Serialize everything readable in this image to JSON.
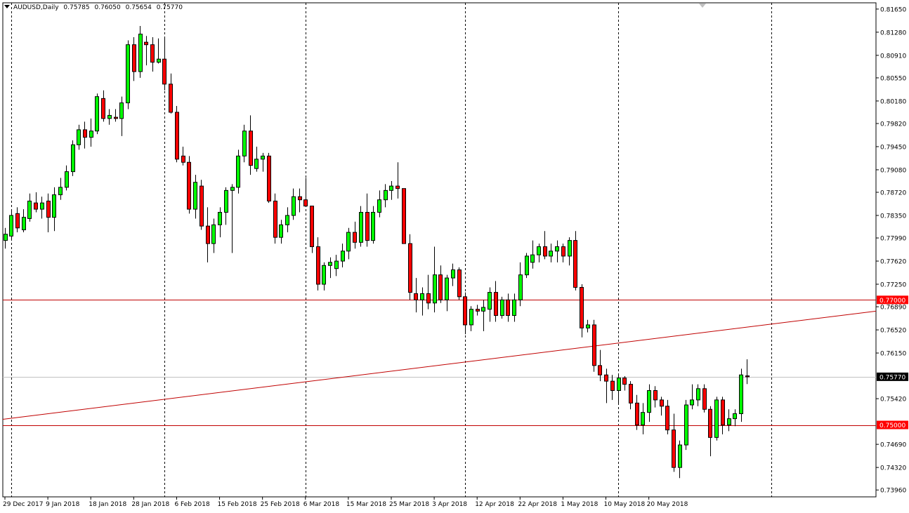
{
  "header": {
    "symbol": "AUDUSD,Daily",
    "open": "0.75785",
    "high": "0.76050",
    "low": "0.75654",
    "close": "0.75770"
  },
  "colors": {
    "background": "#ffffff",
    "bull": "#00ff00",
    "bear": "#ff0000",
    "wick": "#000000",
    "grid": "#000000",
    "level_line": "#c00000",
    "trend_line": "#c00000",
    "price_line": "#c0c0c0",
    "label_red_bg": "#ff0000",
    "label_price_bg": "#000000"
  },
  "chart_data": {
    "type": "candlestick",
    "symbol": "AUDUSD",
    "timeframe": "Daily",
    "ylim": [
      0.7385,
      0.8175
    ],
    "y_ticks": [
      "0.81650",
      "0.81280",
      "0.80910",
      "0.80550",
      "0.80180",
      "0.79820",
      "0.79450",
      "0.79080",
      "0.78720",
      "0.78350",
      "0.77990",
      "0.77620",
      "0.77250",
      "0.76890",
      "0.76520",
      "0.76150",
      "0.75420",
      "0.74690",
      "0.74320",
      "0.73960"
    ],
    "x_ticks": [
      {
        "label": "29 Dec 2017",
        "index": 0
      },
      {
        "label": "9 Jan 2018",
        "index": 7
      },
      {
        "label": "18 Jan 2018",
        "index": 14
      },
      {
        "label": "28 Jan 2018",
        "index": 21
      },
      {
        "label": "6 Feb 2018",
        "index": 28
      },
      {
        "label": "15 Feb 2018",
        "index": 35
      },
      {
        "label": "25 Feb 2018",
        "index": 42
      },
      {
        "label": "6 Mar 2018",
        "index": 49
      },
      {
        "label": "15 Mar 2018",
        "index": 56
      },
      {
        "label": "25 Mar 2018",
        "index": 63
      },
      {
        "label": "3 Apr 2018",
        "index": 70
      },
      {
        "label": "12 Apr 2018",
        "index": 77
      },
      {
        "label": "22 Apr 2018",
        "index": 84
      },
      {
        "label": "1 May 2018",
        "index": 91
      },
      {
        "label": "10 May 2018",
        "index": 98
      },
      {
        "label": "20 May 2018",
        "index": 105
      }
    ],
    "period_separators": [
      1,
      26,
      49,
      75,
      100,
      125
    ],
    "horizontal_levels": [
      {
        "value": 0.77,
        "label": "0.77000"
      },
      {
        "value": 0.75,
        "label": "0.75000"
      }
    ],
    "current_price": {
      "value": 0.7577,
      "label": "0.75770"
    },
    "trend_line": {
      "from": {
        "index": 0,
        "price": 0.7509
      },
      "to": {
        "index": 149,
        "price": 0.7682
      }
    },
    "candles": [
      {
        "o": 0.7795,
        "h": 0.7815,
        "l": 0.7782,
        "c": 0.7805
      },
      {
        "o": 0.7802,
        "h": 0.7845,
        "l": 0.7797,
        "c": 0.7835
      },
      {
        "o": 0.7838,
        "h": 0.7848,
        "l": 0.7808,
        "c": 0.7815
      },
      {
        "o": 0.7812,
        "h": 0.7845,
        "l": 0.7808,
        "c": 0.7832
      },
      {
        "o": 0.783,
        "h": 0.787,
        "l": 0.7825,
        "c": 0.7858
      },
      {
        "o": 0.7855,
        "h": 0.7872,
        "l": 0.784,
        "c": 0.7845
      },
      {
        "o": 0.7845,
        "h": 0.7865,
        "l": 0.783,
        "c": 0.7855
      },
      {
        "o": 0.7858,
        "h": 0.787,
        "l": 0.7808,
        "c": 0.7832
      },
      {
        "o": 0.7832,
        "h": 0.788,
        "l": 0.781,
        "c": 0.7868
      },
      {
        "o": 0.7868,
        "h": 0.7895,
        "l": 0.786,
        "c": 0.788
      },
      {
        "o": 0.788,
        "h": 0.7915,
        "l": 0.7875,
        "c": 0.7905
      },
      {
        "o": 0.7905,
        "h": 0.7955,
        "l": 0.7898,
        "c": 0.7948
      },
      {
        "o": 0.7948,
        "h": 0.798,
        "l": 0.794,
        "c": 0.7972
      },
      {
        "o": 0.7972,
        "h": 0.7985,
        "l": 0.7942,
        "c": 0.796
      },
      {
        "o": 0.796,
        "h": 0.799,
        "l": 0.7945,
        "c": 0.797
      },
      {
        "o": 0.797,
        "h": 0.803,
        "l": 0.7965,
        "c": 0.8025
      },
      {
        "o": 0.8022,
        "h": 0.8035,
        "l": 0.7985,
        "c": 0.799
      },
      {
        "o": 0.799,
        "h": 0.8005,
        "l": 0.798,
        "c": 0.7995
      },
      {
        "o": 0.7992,
        "h": 0.8005,
        "l": 0.7985,
        "c": 0.799
      },
      {
        "o": 0.799,
        "h": 0.8025,
        "l": 0.7962,
        "c": 0.8015
      },
      {
        "o": 0.8015,
        "h": 0.8115,
        "l": 0.8005,
        "c": 0.8108
      },
      {
        "o": 0.8108,
        "h": 0.812,
        "l": 0.805,
        "c": 0.8065
      },
      {
        "o": 0.8065,
        "h": 0.8138,
        "l": 0.8055,
        "c": 0.8125
      },
      {
        "o": 0.8112,
        "h": 0.8122,
        "l": 0.8075,
        "c": 0.8108
      },
      {
        "o": 0.8108,
        "h": 0.812,
        "l": 0.8065,
        "c": 0.808
      },
      {
        "o": 0.808,
        "h": 0.8118,
        "l": 0.8078,
        "c": 0.8085
      },
      {
        "o": 0.8085,
        "h": 0.8118,
        "l": 0.8035,
        "c": 0.8045
      },
      {
        "o": 0.8045,
        "h": 0.8062,
        "l": 0.7998,
        "c": 0.8
      },
      {
        "o": 0.8,
        "h": 0.801,
        "l": 0.792,
        "c": 0.7925
      },
      {
        "o": 0.793,
        "h": 0.7945,
        "l": 0.7915,
        "c": 0.792
      },
      {
        "o": 0.792,
        "h": 0.793,
        "l": 0.7838,
        "c": 0.7845
      },
      {
        "o": 0.7845,
        "h": 0.79,
        "l": 0.783,
        "c": 0.7888
      },
      {
        "o": 0.7882,
        "h": 0.7892,
        "l": 0.7812,
        "c": 0.7818
      },
      {
        "o": 0.7818,
        "h": 0.7848,
        "l": 0.776,
        "c": 0.779
      },
      {
        "o": 0.779,
        "h": 0.783,
        "l": 0.7775,
        "c": 0.782
      },
      {
        "o": 0.782,
        "h": 0.7848,
        "l": 0.78,
        "c": 0.784
      },
      {
        "o": 0.784,
        "h": 0.788,
        "l": 0.782,
        "c": 0.7875
      },
      {
        "o": 0.7875,
        "h": 0.7885,
        "l": 0.7775,
        "c": 0.788
      },
      {
        "o": 0.788,
        "h": 0.794,
        "l": 0.787,
        "c": 0.793
      },
      {
        "o": 0.793,
        "h": 0.798,
        "l": 0.792,
        "c": 0.797
      },
      {
        "o": 0.797,
        "h": 0.7995,
        "l": 0.79,
        "c": 0.7915
      },
      {
        "o": 0.791,
        "h": 0.7945,
        "l": 0.7905,
        "c": 0.7925
      },
      {
        "o": 0.7925,
        "h": 0.7935,
        "l": 0.7905,
        "c": 0.793
      },
      {
        "o": 0.793,
        "h": 0.7935,
        "l": 0.7855,
        "c": 0.7858
      },
      {
        "o": 0.7858,
        "h": 0.787,
        "l": 0.779,
        "c": 0.78
      },
      {
        "o": 0.78,
        "h": 0.7828,
        "l": 0.779,
        "c": 0.782
      },
      {
        "o": 0.782,
        "h": 0.7848,
        "l": 0.7808,
        "c": 0.7835
      },
      {
        "o": 0.7835,
        "h": 0.7878,
        "l": 0.7828,
        "c": 0.7865
      },
      {
        "o": 0.7865,
        "h": 0.7878,
        "l": 0.784,
        "c": 0.786
      },
      {
        "o": 0.786,
        "h": 0.7895,
        "l": 0.785,
        "c": 0.785
      },
      {
        "o": 0.785,
        "h": 0.785,
        "l": 0.7775,
        "c": 0.7785
      },
      {
        "o": 0.7785,
        "h": 0.78,
        "l": 0.7715,
        "c": 0.7725
      },
      {
        "o": 0.7725,
        "h": 0.776,
        "l": 0.7715,
        "c": 0.7755
      },
      {
        "o": 0.7755,
        "h": 0.7768,
        "l": 0.7735,
        "c": 0.776
      },
      {
        "o": 0.775,
        "h": 0.7772,
        "l": 0.7738,
        "c": 0.7762
      },
      {
        "o": 0.7762,
        "h": 0.779,
        "l": 0.7752,
        "c": 0.7778
      },
      {
        "o": 0.7778,
        "h": 0.7815,
        "l": 0.7765,
        "c": 0.7808
      },
      {
        "o": 0.7808,
        "h": 0.7825,
        "l": 0.7782,
        "c": 0.7792
      },
      {
        "o": 0.7792,
        "h": 0.785,
        "l": 0.7785,
        "c": 0.784
      },
      {
        "o": 0.784,
        "h": 0.787,
        "l": 0.7785,
        "c": 0.7795
      },
      {
        "o": 0.7795,
        "h": 0.785,
        "l": 0.779,
        "c": 0.784
      },
      {
        "o": 0.784,
        "h": 0.7875,
        "l": 0.7832,
        "c": 0.786
      },
      {
        "o": 0.786,
        "h": 0.7885,
        "l": 0.7848,
        "c": 0.7875
      },
      {
        "o": 0.7875,
        "h": 0.789,
        "l": 0.786,
        "c": 0.7882
      },
      {
        "o": 0.7882,
        "h": 0.792,
        "l": 0.7862,
        "c": 0.7878
      },
      {
        "o": 0.7878,
        "h": 0.7878,
        "l": 0.779,
        "c": 0.779
      },
      {
        "o": 0.779,
        "h": 0.7805,
        "l": 0.77,
        "c": 0.7712
      },
      {
        "o": 0.771,
        "h": 0.7735,
        "l": 0.768,
        "c": 0.77
      },
      {
        "o": 0.77,
        "h": 0.772,
        "l": 0.7675,
        "c": 0.771
      },
      {
        "o": 0.771,
        "h": 0.774,
        "l": 0.7685,
        "c": 0.7695
      },
      {
        "o": 0.7695,
        "h": 0.7785,
        "l": 0.768,
        "c": 0.774
      },
      {
        "o": 0.774,
        "h": 0.7755,
        "l": 0.7695,
        "c": 0.77
      },
      {
        "o": 0.77,
        "h": 0.774,
        "l": 0.7682,
        "c": 0.7735
      },
      {
        "o": 0.7735,
        "h": 0.7758,
        "l": 0.7722,
        "c": 0.7748
      },
      {
        "o": 0.7748,
        "h": 0.7752,
        "l": 0.77,
        "c": 0.7705
      },
      {
        "o": 0.7705,
        "h": 0.7712,
        "l": 0.7645,
        "c": 0.766
      },
      {
        "o": 0.766,
        "h": 0.769,
        "l": 0.765,
        "c": 0.7685
      },
      {
        "o": 0.7685,
        "h": 0.7692,
        "l": 0.7675,
        "c": 0.7682
      },
      {
        "o": 0.7682,
        "h": 0.77,
        "l": 0.765,
        "c": 0.7688
      },
      {
        "o": 0.7685,
        "h": 0.772,
        "l": 0.7665,
        "c": 0.7712
      },
      {
        "o": 0.7712,
        "h": 0.773,
        "l": 0.7665,
        "c": 0.7675
      },
      {
        "o": 0.7675,
        "h": 0.7705,
        "l": 0.767,
        "c": 0.77
      },
      {
        "o": 0.77,
        "h": 0.771,
        "l": 0.7665,
        "c": 0.7675
      },
      {
        "o": 0.7675,
        "h": 0.771,
        "l": 0.7665,
        "c": 0.77
      },
      {
        "o": 0.77,
        "h": 0.776,
        "l": 0.769,
        "c": 0.774
      },
      {
        "o": 0.774,
        "h": 0.7775,
        "l": 0.7735,
        "c": 0.777
      },
      {
        "o": 0.776,
        "h": 0.7795,
        "l": 0.775,
        "c": 0.7772
      },
      {
        "o": 0.7772,
        "h": 0.779,
        "l": 0.776,
        "c": 0.7785
      },
      {
        "o": 0.7785,
        "h": 0.781,
        "l": 0.7765,
        "c": 0.777
      },
      {
        "o": 0.777,
        "h": 0.779,
        "l": 0.776,
        "c": 0.7778
      },
      {
        "o": 0.7778,
        "h": 0.7795,
        "l": 0.776,
        "c": 0.7785
      },
      {
        "o": 0.7785,
        "h": 0.779,
        "l": 0.776,
        "c": 0.777
      },
      {
        "o": 0.777,
        "h": 0.78,
        "l": 0.7755,
        "c": 0.7795
      },
      {
        "o": 0.7795,
        "h": 0.781,
        "l": 0.7715,
        "c": 0.772
      },
      {
        "o": 0.772,
        "h": 0.7725,
        "l": 0.764,
        "c": 0.7655
      },
      {
        "o": 0.7655,
        "h": 0.7668,
        "l": 0.7648,
        "c": 0.766
      },
      {
        "o": 0.766,
        "h": 0.7668,
        "l": 0.7585,
        "c": 0.7595
      },
      {
        "o": 0.7595,
        "h": 0.762,
        "l": 0.757,
        "c": 0.758
      },
      {
        "o": 0.758,
        "h": 0.759,
        "l": 0.7535,
        "c": 0.757
      },
      {
        "o": 0.757,
        "h": 0.758,
        "l": 0.754,
        "c": 0.7555
      },
      {
        "o": 0.7555,
        "h": 0.7582,
        "l": 0.7535,
        "c": 0.7575
      },
      {
        "o": 0.7575,
        "h": 0.7578,
        "l": 0.7555,
        "c": 0.7565
      },
      {
        "o": 0.7565,
        "h": 0.757,
        "l": 0.7525,
        "c": 0.7535
      },
      {
        "o": 0.7535,
        "h": 0.7548,
        "l": 0.7492,
        "c": 0.75
      },
      {
        "o": 0.75,
        "h": 0.7535,
        "l": 0.7485,
        "c": 0.752
      },
      {
        "o": 0.752,
        "h": 0.7565,
        "l": 0.7505,
        "c": 0.7555
      },
      {
        "o": 0.7555,
        "h": 0.7562,
        "l": 0.7528,
        "c": 0.754
      },
      {
        "o": 0.754,
        "h": 0.7545,
        "l": 0.7515,
        "c": 0.753
      },
      {
        "o": 0.753,
        "h": 0.754,
        "l": 0.7485,
        "c": 0.7492
      },
      {
        "o": 0.7492,
        "h": 0.7518,
        "l": 0.7425,
        "c": 0.7432
      },
      {
        "o": 0.7432,
        "h": 0.7475,
        "l": 0.7415,
        "c": 0.7468
      },
      {
        "o": 0.7468,
        "h": 0.754,
        "l": 0.746,
        "c": 0.7532
      },
      {
        "o": 0.7532,
        "h": 0.7565,
        "l": 0.7525,
        "c": 0.754
      },
      {
        "o": 0.754,
        "h": 0.7565,
        "l": 0.753,
        "c": 0.7558
      },
      {
        "o": 0.7558,
        "h": 0.7565,
        "l": 0.752,
        "c": 0.7525
      },
      {
        "o": 0.7525,
        "h": 0.753,
        "l": 0.745,
        "c": 0.748
      },
      {
        "o": 0.748,
        "h": 0.7545,
        "l": 0.7475,
        "c": 0.754
      },
      {
        "o": 0.754,
        "h": 0.7545,
        "l": 0.7485,
        "c": 0.75
      },
      {
        "o": 0.75,
        "h": 0.7525,
        "l": 0.749,
        "c": 0.751
      },
      {
        "o": 0.751,
        "h": 0.7525,
        "l": 0.7498,
        "c": 0.7518
      },
      {
        "o": 0.7518,
        "h": 0.759,
        "l": 0.7505,
        "c": 0.758
      },
      {
        "o": 0.75785,
        "h": 0.7605,
        "l": 0.75654,
        "c": 0.7577
      }
    ]
  }
}
